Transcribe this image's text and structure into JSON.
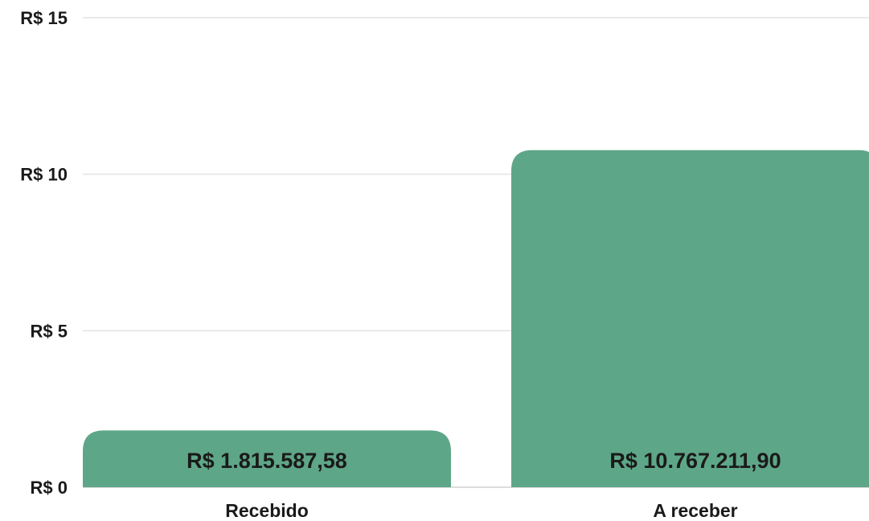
{
  "chart_data": {
    "type": "bar",
    "categories": [
      "Recebido",
      "A receber"
    ],
    "values": [
      1.81558758,
      10.7672119
    ],
    "data_labels": [
      "R$ 1.815.587,58",
      "R$ 10.767.211,90"
    ],
    "y_ticks": [
      {
        "value": 0,
        "label": "R$ 0"
      },
      {
        "value": 5,
        "label": "R$ 5"
      },
      {
        "value": 10,
        "label": "R$ 10"
      },
      {
        "value": 15,
        "label": "R$ 15"
      }
    ],
    "ylim": [
      0,
      15
    ],
    "grid": true,
    "legend": "none",
    "title": "",
    "xlabel": "",
    "ylabel": "",
    "bar_color": "#5ea688",
    "text_color": "#1a1a1a",
    "grid_color": "#e3e3e3"
  }
}
